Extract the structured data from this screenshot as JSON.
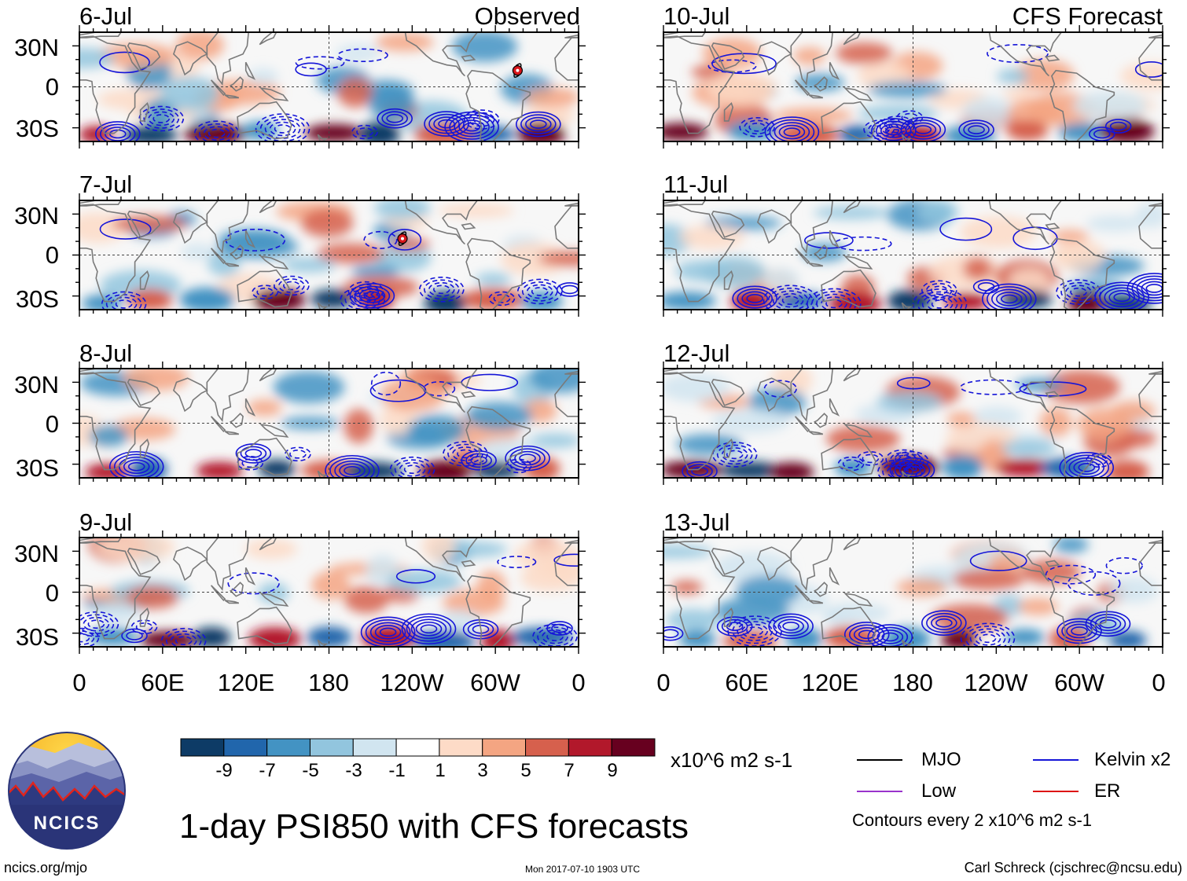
{
  "chart_data": {
    "type": "heatmap",
    "title": "1-day PSI850 with CFS forecasts",
    "column_headers": {
      "left": "Observed",
      "right": "CFS Forecast"
    },
    "panels": [
      {
        "date": "6-Jul",
        "source": "Observed",
        "column": 0,
        "row": 0
      },
      {
        "date": "7-Jul",
        "source": "Observed",
        "column": 0,
        "row": 1
      },
      {
        "date": "8-Jul",
        "source": "Observed",
        "column": 0,
        "row": 2
      },
      {
        "date": "9-Jul",
        "source": "Observed",
        "column": 0,
        "row": 3
      },
      {
        "date": "10-Jul",
        "source": "CFS Forecast",
        "column": 1,
        "row": 0
      },
      {
        "date": "11-Jul",
        "source": "CFS Forecast",
        "column": 1,
        "row": 1
      },
      {
        "date": "12-Jul",
        "source": "CFS Forecast",
        "column": 1,
        "row": 2
      },
      {
        "date": "13-Jul",
        "source": "CFS Forecast",
        "column": 1,
        "row": 3
      }
    ],
    "x_ticks": [
      "0",
      "60E",
      "120E",
      "180",
      "120W",
      "60W",
      "0"
    ],
    "x_tick_longitudes": [
      0,
      60,
      120,
      180,
      240,
      300,
      360
    ],
    "y_ticks": [
      "30N",
      "0",
      "30S"
    ],
    "y_tick_latitudes": [
      30,
      0,
      -30
    ],
    "lon_range": [
      0,
      360
    ],
    "lat_range": [
      -40,
      40
    ],
    "storm_markers": [
      {
        "panel": 0,
        "symbol": "tropical-cyclone",
        "lon": 316,
        "lat": 12
      },
      {
        "panel": 1,
        "symbol": "tropical-cyclone",
        "lon": 233,
        "lat": 12
      }
    ],
    "colorbar": {
      "unit_label": "x10^6 m2 s-1",
      "tick_labels": [
        "-9",
        "-7",
        "-5",
        "-3",
        "-1",
        "1",
        "3",
        "5",
        "7",
        "9"
      ],
      "colors": [
        "#0d3b66",
        "#2166ac",
        "#4393c3",
        "#92c5de",
        "#d1e5f0",
        "#ffffff",
        "#fddbc7",
        "#f4a582",
        "#d6604d",
        "#b2182b",
        "#67001f"
      ]
    },
    "legend": [
      {
        "label": "MJO",
        "color": "#000000"
      },
      {
        "label": "Kelvin x2",
        "color": "#1515d8"
      },
      {
        "label": "Low",
        "color": "#9933cc"
      },
      {
        "label": "ER",
        "color": "#dd1111"
      }
    ],
    "contour_note": "Contours every 2 x10^6 m2 s-1"
  },
  "logo": {
    "text": "NCICS"
  },
  "footer": {
    "website": "ncics.org/mjo",
    "timestamp": "Mon 2017-07-10 1903 UTC",
    "credit": "Carl Schreck (cjschrec@ncsu.edu)"
  }
}
